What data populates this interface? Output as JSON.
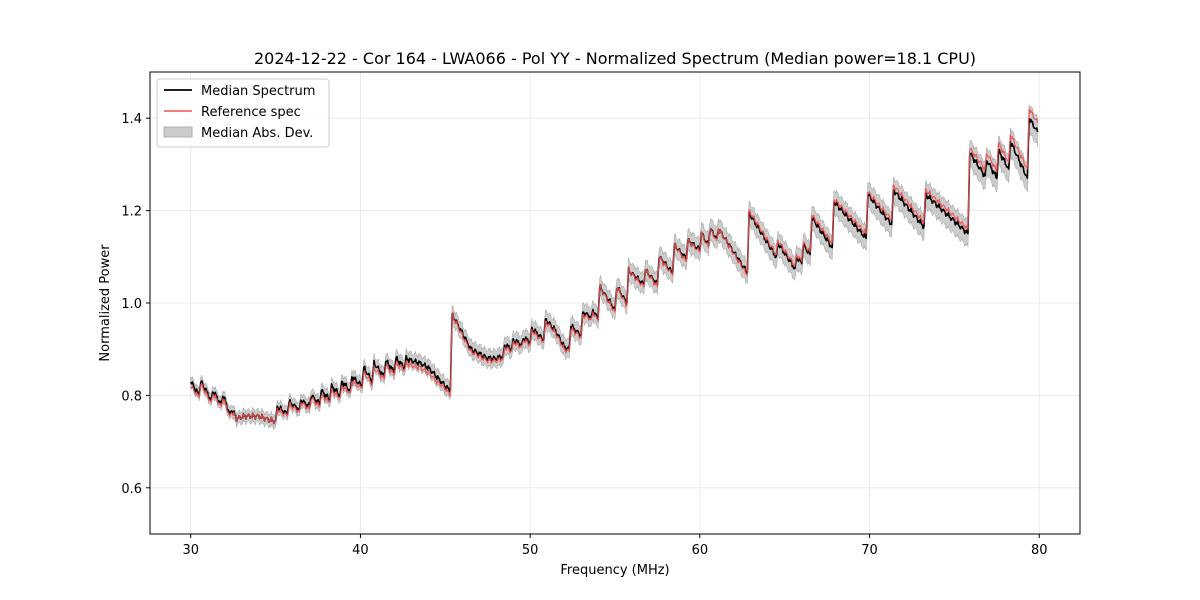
{
  "chart_data": {
    "type": "line",
    "title": "2024-12-22 - Cor 164 - LWA066 - Pol YY - Normalized Spectrum (Median power=18.1 CPU)",
    "xlabel": "Frequency (MHz)",
    "ylabel": "Normalized Power",
    "xlim": [
      27.6,
      82.4
    ],
    "ylim": [
      0.5,
      1.5
    ],
    "xticks": [
      30,
      40,
      50,
      60,
      70,
      80
    ],
    "yticks": [
      0.6,
      0.8,
      1.0,
      1.2,
      1.4
    ],
    "xtick_labels": [
      "30",
      "40",
      "50",
      "60",
      "70",
      "80"
    ],
    "ytick_labels": [
      "0.6",
      "0.8",
      "1.0",
      "1.2",
      "1.4"
    ],
    "grid": true,
    "legend_position": "top-left",
    "colors": {
      "median": "#000000",
      "reference": "#f05050",
      "mad": "#b0b0b0"
    },
    "series": [
      {
        "name": "Median Spectrum",
        "x": [
          30.0,
          30.5,
          30.6,
          31.2,
          31.3,
          31.8,
          31.9,
          32.3,
          32.4,
          32.7,
          33.2,
          34.0,
          34.8,
          35.0,
          35.1,
          35.7,
          35.8,
          36.4,
          36.5,
          37.0,
          37.1,
          37.6,
          37.7,
          38.2,
          38.3,
          38.8,
          38.9,
          39.4,
          39.5,
          40.1,
          40.2,
          40.7,
          40.8,
          41.4,
          41.5,
          42.0,
          42.1,
          42.6,
          42.7,
          43.0,
          43.5,
          44.0,
          44.5,
          45.0,
          45.3,
          45.4,
          46.0,
          46.5,
          47.0,
          47.5,
          48.0,
          48.4,
          48.5,
          48.9,
          49.0,
          49.5,
          49.6,
          50.0,
          50.1,
          50.8,
          50.9,
          51.5,
          52.0,
          52.3,
          52.4,
          53.0,
          53.1,
          53.6,
          53.7,
          54.0,
          54.1,
          55.0,
          55.1,
          55.7,
          55.8,
          56.7,
          56.8,
          57.5,
          57.6,
          58.4,
          58.5,
          59.2,
          59.3,
          60.0,
          60.1,
          60.5,
          60.6,
          61.0,
          61.1,
          62.8,
          62.9,
          64.5,
          64.6,
          65.6,
          65.7,
          66.0,
          66.1,
          66.5,
          66.6,
          67.8,
          67.9,
          69.8,
          69.9,
          71.3,
          71.4,
          73.2,
          73.3,
          75.8,
          75.9,
          76.8,
          76.9,
          77.5,
          77.6,
          78.2,
          78.3,
          79.3,
          79.4,
          79.9
        ],
        "values": [
          0.83,
          0.8,
          0.83,
          0.79,
          0.81,
          0.78,
          0.8,
          0.76,
          0.77,
          0.75,
          0.755,
          0.755,
          0.745,
          0.745,
          0.775,
          0.76,
          0.785,
          0.77,
          0.79,
          0.775,
          0.8,
          0.78,
          0.81,
          0.79,
          0.82,
          0.8,
          0.83,
          0.81,
          0.84,
          0.82,
          0.86,
          0.83,
          0.87,
          0.84,
          0.875,
          0.85,
          0.88,
          0.86,
          0.88,
          0.875,
          0.87,
          0.86,
          0.84,
          0.82,
          0.81,
          0.975,
          0.935,
          0.9,
          0.89,
          0.88,
          0.88,
          0.885,
          0.91,
          0.9,
          0.92,
          0.91,
          0.925,
          0.915,
          0.945,
          0.92,
          0.965,
          0.94,
          0.905,
          0.9,
          0.95,
          0.93,
          0.98,
          0.97,
          0.985,
          0.965,
          1.035,
          0.985,
          1.035,
          1.0,
          1.07,
          1.04,
          1.07,
          1.04,
          1.1,
          1.065,
          1.125,
          1.095,
          1.135,
          1.115,
          1.15,
          1.125,
          1.16,
          1.14,
          1.16,
          1.065,
          1.195,
          1.1,
          1.13,
          1.075,
          1.1,
          1.085,
          1.125,
          1.105,
          1.185,
          1.12,
          1.22,
          1.14,
          1.235,
          1.17,
          1.245,
          1.165,
          1.235,
          1.15,
          1.325,
          1.275,
          1.31,
          1.27,
          1.33,
          1.29,
          1.35,
          1.27,
          1.4,
          1.37
        ]
      },
      {
        "name": "Reference spec",
        "x": [
          30.0,
          30.5,
          30.6,
          31.2,
          31.3,
          31.8,
          31.9,
          32.3,
          32.4,
          32.7,
          33.2,
          34.0,
          34.8,
          35.0,
          35.1,
          35.7,
          35.8,
          36.4,
          36.5,
          37.0,
          37.1,
          37.6,
          37.7,
          38.2,
          38.3,
          38.8,
          38.9,
          39.4,
          39.5,
          40.1,
          40.2,
          40.7,
          40.8,
          41.4,
          41.5,
          42.0,
          42.1,
          42.6,
          42.7,
          43.0,
          43.5,
          44.0,
          44.5,
          45.0,
          45.3,
          45.4,
          46.0,
          46.5,
          47.0,
          47.5,
          48.0,
          48.4,
          48.5,
          48.9,
          49.0,
          49.5,
          49.6,
          50.0,
          50.1,
          50.8,
          50.9,
          51.5,
          52.0,
          52.3,
          52.4,
          53.0,
          53.1,
          53.6,
          53.7,
          54.0,
          54.1,
          55.0,
          55.1,
          55.7,
          55.8,
          56.7,
          56.8,
          57.5,
          57.6,
          58.4,
          58.5,
          59.2,
          59.3,
          60.0,
          60.1,
          60.5,
          60.6,
          61.0,
          61.1,
          62.8,
          62.9,
          64.5,
          64.6,
          65.6,
          65.7,
          66.0,
          66.1,
          66.5,
          66.6,
          67.8,
          67.9,
          69.8,
          69.9,
          71.3,
          71.4,
          73.2,
          73.3,
          75.8,
          75.9,
          76.8,
          76.9,
          77.5,
          77.6,
          78.2,
          78.3,
          79.3,
          79.4,
          79.9
        ],
        "values": [
          0.82,
          0.795,
          0.825,
          0.785,
          0.805,
          0.775,
          0.795,
          0.755,
          0.765,
          0.75,
          0.755,
          0.755,
          0.745,
          0.745,
          0.77,
          0.755,
          0.78,
          0.765,
          0.785,
          0.77,
          0.795,
          0.775,
          0.8,
          0.785,
          0.81,
          0.795,
          0.82,
          0.805,
          0.83,
          0.815,
          0.85,
          0.825,
          0.86,
          0.835,
          0.865,
          0.845,
          0.87,
          0.855,
          0.87,
          0.865,
          0.86,
          0.85,
          0.83,
          0.815,
          0.8,
          0.975,
          0.93,
          0.895,
          0.885,
          0.875,
          0.875,
          0.88,
          0.905,
          0.895,
          0.915,
          0.905,
          0.92,
          0.91,
          0.94,
          0.915,
          0.96,
          0.935,
          0.9,
          0.895,
          0.945,
          0.925,
          0.975,
          0.965,
          0.98,
          0.96,
          1.035,
          0.98,
          1.035,
          0.995,
          1.07,
          1.035,
          1.07,
          1.035,
          1.1,
          1.06,
          1.125,
          1.09,
          1.135,
          1.11,
          1.15,
          1.12,
          1.16,
          1.135,
          1.16,
          1.06,
          1.2,
          1.105,
          1.135,
          1.08,
          1.105,
          1.09,
          1.13,
          1.11,
          1.19,
          1.13,
          1.225,
          1.15,
          1.24,
          1.18,
          1.255,
          1.175,
          1.245,
          1.16,
          1.335,
          1.29,
          1.325,
          1.285,
          1.345,
          1.305,
          1.365,
          1.29,
          1.42,
          1.39
        ]
      },
      {
        "name": "Median Abs. Dev.",
        "type": "band",
        "half_width_start": 0.012,
        "half_width_end": 0.03
      }
    ]
  }
}
